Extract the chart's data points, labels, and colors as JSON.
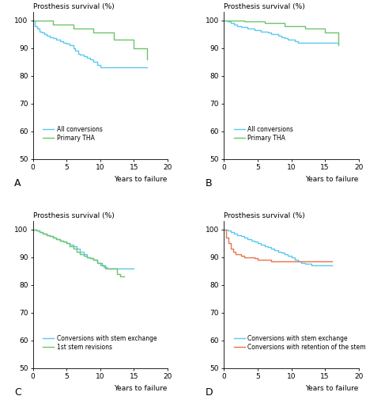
{
  "xlabel": "Years to failure",
  "ylim": [
    50,
    103
  ],
  "xlim": [
    0,
    20
  ],
  "yticks": [
    50,
    60,
    70,
    80,
    90,
    100
  ],
  "xticks": [
    0,
    5,
    10,
    15,
    20
  ],
  "A": {
    "title": "Prosthesis survival (%)",
    "curves": [
      {
        "label": "All conversions",
        "color": "#5BC8F0",
        "x": [
          0,
          0.3,
          0.6,
          1,
          1.3,
          1.7,
          2,
          2.5,
          3,
          3.5,
          4,
          4.5,
          5,
          5.5,
          6,
          6.3,
          6.7,
          7,
          7.5,
          8,
          8.5,
          9,
          9.5,
          10,
          10.5,
          11,
          15,
          17
        ],
        "y": [
          100,
          98,
          97,
          96,
          95.5,
          95,
          94.5,
          94,
          93.5,
          93,
          92.5,
          92,
          91.5,
          91,
          90,
          89,
          88,
          87.5,
          87,
          86.5,
          86,
          85,
          84,
          83,
          83,
          83,
          83,
          83
        ]
      },
      {
        "label": "Primary THA",
        "color": "#6CC46C",
        "x": [
          0,
          3,
          6,
          9,
          12,
          15,
          17
        ],
        "y": [
          100,
          98.5,
          97,
          95.5,
          93,
          90,
          86
        ]
      }
    ]
  },
  "B": {
    "title": "Prosthesis survival (%)",
    "curves": [
      {
        "label": "All conversions",
        "color": "#5BC8F0",
        "x": [
          0,
          0.5,
          1,
          1.5,
          2,
          2.5,
          3,
          3.5,
          4,
          4.5,
          5,
          5.5,
          6,
          6.5,
          7,
          7.5,
          8,
          8.5,
          9,
          9.5,
          10,
          10.5,
          11,
          15,
          17
        ],
        "y": [
          100,
          99.5,
          99,
          98.5,
          98,
          97.5,
          97.5,
          97,
          97,
          96.5,
          96.5,
          96,
          96,
          95.5,
          95,
          95,
          94.5,
          94,
          93.5,
          93,
          93,
          92.5,
          92,
          92,
          92
        ]
      },
      {
        "label": "Primary THA",
        "color": "#6CC46C",
        "x": [
          0,
          3,
          6,
          9,
          12,
          15,
          17
        ],
        "y": [
          100,
          99.5,
          99,
          98,
          97,
          95.5,
          91
        ]
      }
    ]
  },
  "C": {
    "title": "Prosthesis survival (%)",
    "curves": [
      {
        "label": "Conversions with stem exchange",
        "color": "#5BC8F0",
        "x": [
          0,
          0.5,
          1,
          1.5,
          2,
          2.5,
          3,
          3.5,
          4,
          4.5,
          5,
          5.5,
          6,
          6.5,
          7,
          7.5,
          8,
          8.5,
          9,
          9.5,
          10,
          10.5,
          11,
          11.5,
          12,
          13,
          14,
          14.5,
          15
        ],
        "y": [
          100,
          99.5,
          99,
          98.5,
          98,
          97.5,
          97,
          96.5,
          96,
          95.5,
          95,
          94.5,
          94,
          93,
          92,
          91,
          90,
          89.5,
          89,
          88,
          87,
          86.5,
          86,
          86,
          86,
          86,
          86,
          86,
          86
        ]
      },
      {
        "label": "1st stem revisions",
        "color": "#6CC46C",
        "x": [
          0,
          0.5,
          1,
          1.5,
          2,
          2.5,
          3,
          3.5,
          4,
          4.5,
          5,
          5.5,
          6,
          6.5,
          7,
          7.5,
          8,
          8.5,
          9,
          9.5,
          10,
          10.3,
          10.7,
          11,
          11.5,
          12,
          12.5,
          13,
          13.5
        ],
        "y": [
          100,
          99.5,
          99,
          98.5,
          98,
          97.5,
          97,
          96.5,
          96,
          95.5,
          95,
          94,
          93,
          92,
          91,
          90.5,
          90,
          89.5,
          89,
          88,
          88,
          87,
          86,
          86,
          86,
          86,
          84,
          83,
          83
        ]
      }
    ]
  },
  "D": {
    "title": "Prosthesis survival (%)",
    "curves": [
      {
        "label": "Conversions with stem exchange",
        "color": "#5BC8F0",
        "x": [
          0,
          0.5,
          1,
          1.5,
          2,
          2.5,
          3,
          3.5,
          4,
          4.5,
          5,
          5.5,
          6,
          6.5,
          7,
          7.5,
          8,
          8.5,
          9,
          9.5,
          10,
          10.5,
          11,
          11.5,
          12,
          13,
          14,
          14.5,
          15,
          16
        ],
        "y": [
          100,
          99.5,
          99,
          98.5,
          98,
          97.5,
          97,
          96.5,
          96,
          95.5,
          95,
          94.5,
          94,
          93.5,
          93,
          92.5,
          92,
          91.5,
          91,
          90.5,
          90,
          89,
          88.5,
          88,
          87.5,
          87,
          87,
          87,
          87,
          87
        ]
      },
      {
        "label": "Conversions with retention of the stem",
        "color": "#E8734A",
        "x": [
          0,
          0.3,
          0.6,
          1,
          1.3,
          1.7,
          2,
          2.5,
          3,
          3.5,
          4,
          4.5,
          5,
          6,
          7,
          8,
          9,
          10,
          11,
          12,
          13,
          14,
          15,
          16
        ],
        "y": [
          100,
          97,
          95,
          93,
          92,
          91,
          91,
          90.5,
          90,
          90,
          90,
          89.5,
          89,
          89,
          88.5,
          88.5,
          88.5,
          88.5,
          88.5,
          88.5,
          88.5,
          88.5,
          88.5,
          88.5
        ]
      }
    ]
  }
}
